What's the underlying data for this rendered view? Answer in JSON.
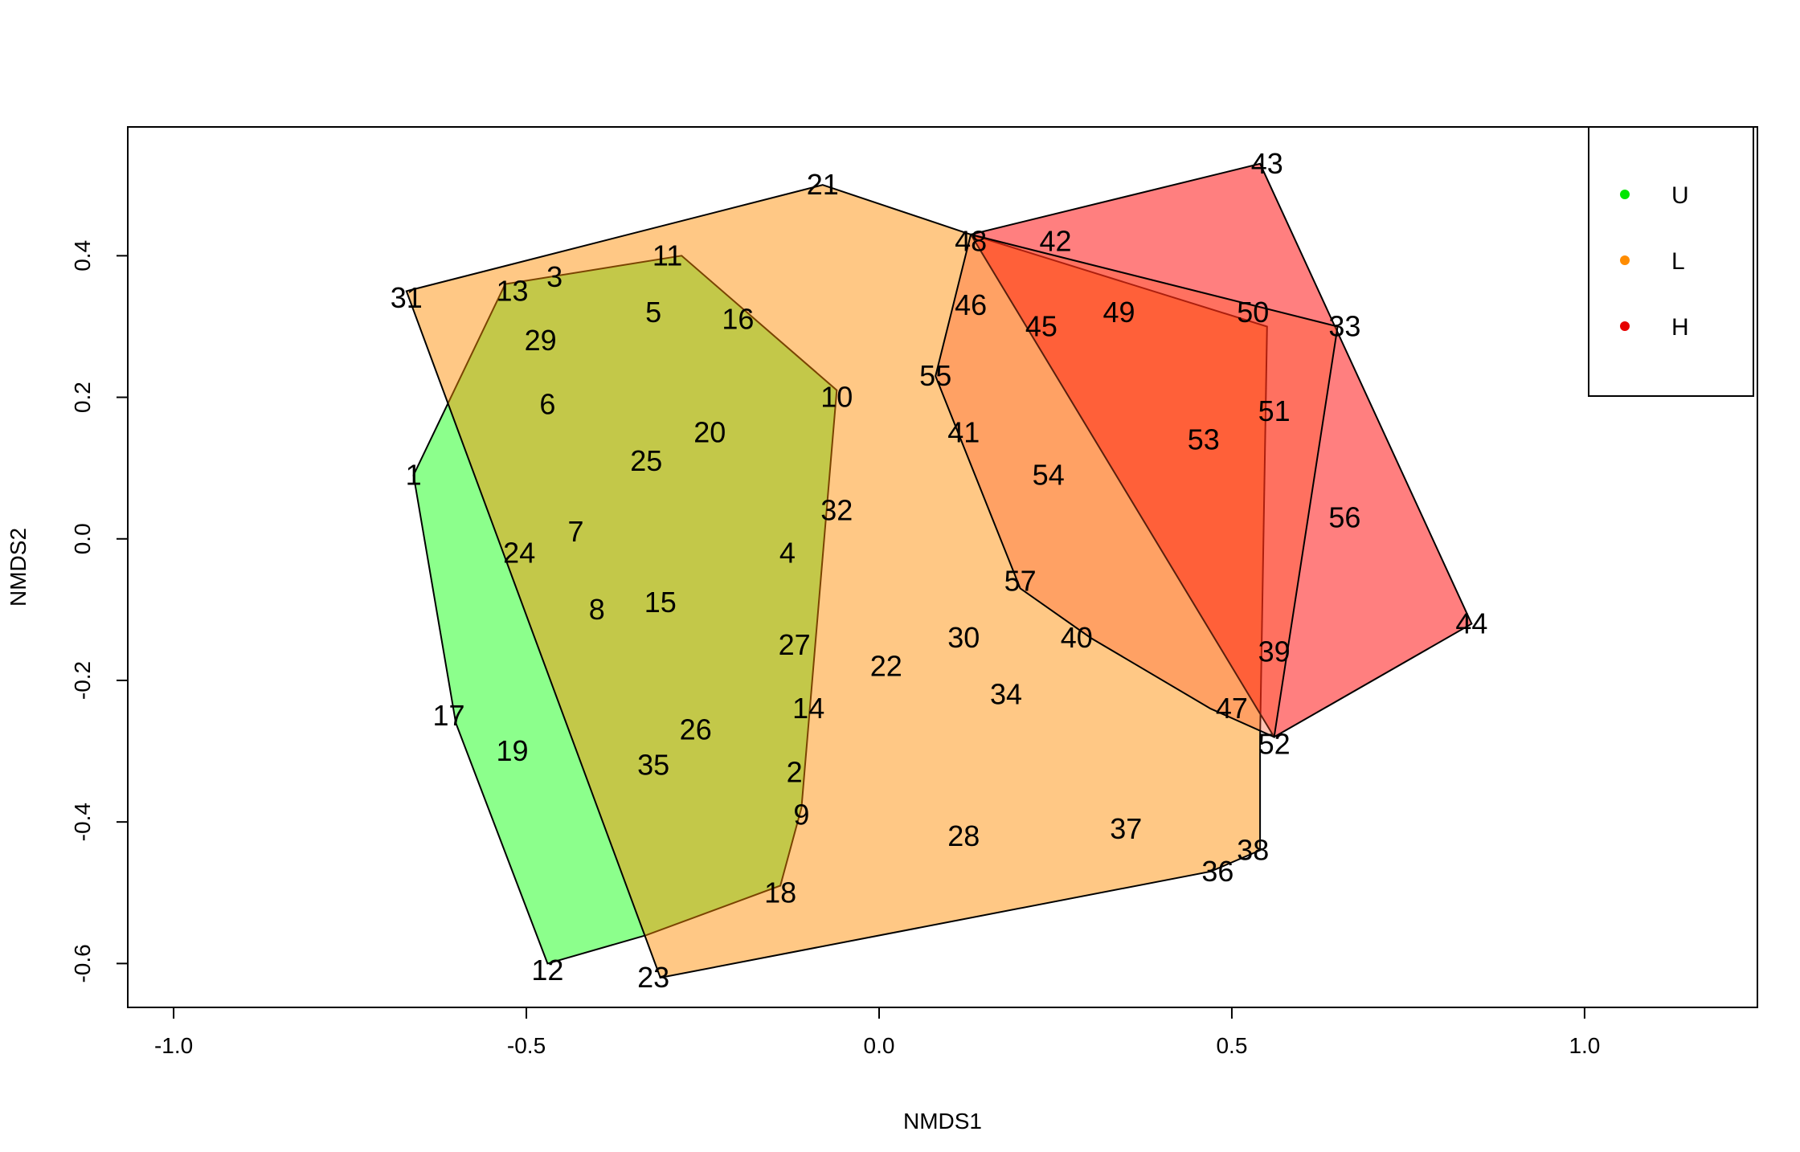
{
  "chart_data": {
    "type": "scatter",
    "title": "",
    "xlabel": "NMDS1",
    "ylabel": "NMDS2",
    "xlim": [
      -1.065,
      1.245
    ],
    "ylim": [
      -0.662,
      0.582
    ],
    "x_ticks": [
      -1.0,
      -0.5,
      0.0,
      0.5,
      1.0
    ],
    "x_tick_labels": [
      "-1.0",
      "-0.5",
      "0.0",
      "0.5",
      "1.0"
    ],
    "y_ticks": [
      -0.6,
      -0.4,
      -0.2,
      0.0,
      0.2,
      0.4
    ],
    "y_tick_labels": [
      "-0.6",
      "-0.4",
      "-0.2",
      "0.0",
      "0.2",
      "0.4"
    ],
    "grid": false,
    "legend_position": "top-right",
    "series": [
      {
        "name": "U",
        "color": "#00e600",
        "fill": "rgba(0,255,0,0.45)",
        "hull": [
          [
            -0.28,
            0.4
          ],
          [
            -0.53,
            0.36
          ],
          [
            -0.66,
            0.09
          ],
          [
            -0.6,
            -0.26
          ],
          [
            -0.47,
            -0.6
          ],
          [
            -0.33,
            -0.56
          ],
          [
            -0.14,
            -0.49
          ],
          [
            -0.11,
            -0.38
          ],
          [
            -0.06,
            0.21
          ]
        ],
        "points": [
          {
            "id": "1",
            "x": -0.66,
            "y": 0.09
          },
          {
            "id": "3",
            "x": -0.46,
            "y": 0.37
          },
          {
            "id": "5",
            "x": -0.32,
            "y": 0.32
          },
          {
            "id": "6",
            "x": -0.47,
            "y": 0.19
          },
          {
            "id": "7",
            "x": -0.43,
            "y": 0.01
          },
          {
            "id": "8",
            "x": -0.4,
            "y": -0.1
          },
          {
            "id": "11",
            "x": -0.3,
            "y": 0.4
          },
          {
            "id": "13",
            "x": -0.52,
            "y": 0.35
          },
          {
            "id": "15",
            "x": -0.31,
            "y": -0.09
          },
          {
            "id": "17",
            "x": -0.61,
            "y": -0.25
          },
          {
            "id": "19",
            "x": -0.52,
            "y": -0.3
          },
          {
            "id": "24",
            "x": -0.51,
            "y": -0.02
          },
          {
            "id": "25",
            "x": -0.33,
            "y": 0.11
          },
          {
            "id": "29",
            "x": -0.48,
            "y": 0.28
          },
          {
            "id": "35",
            "x": -0.32,
            "y": -0.32
          }
        ]
      },
      {
        "name": "L",
        "color": "#ff8c00",
        "fill": "rgba(255,140,0,0.48)",
        "hull": [
          [
            -0.08,
            0.5
          ],
          [
            0.13,
            0.43
          ],
          [
            0.55,
            0.3
          ],
          [
            0.54,
            -0.28
          ],
          [
            0.54,
            -0.44
          ],
          [
            0.47,
            -0.47
          ],
          [
            -0.31,
            -0.62
          ],
          [
            -0.67,
            0.35
          ]
        ],
        "points": [
          {
            "id": "2",
            "x": -0.12,
            "y": -0.33
          },
          {
            "id": "4",
            "x": -0.13,
            "y": -0.02
          },
          {
            "id": "9",
            "x": -0.11,
            "y": -0.39
          },
          {
            "id": "10",
            "x": -0.06,
            "y": 0.2
          },
          {
            "id": "12",
            "x": -0.47,
            "y": -0.61
          },
          {
            "id": "14",
            "x": -0.1,
            "y": -0.24
          },
          {
            "id": "16",
            "x": -0.2,
            "y": 0.31
          },
          {
            "id": "18",
            "x": -0.14,
            "y": -0.5
          },
          {
            "id": "20",
            "x": -0.24,
            "y": 0.15
          },
          {
            "id": "21",
            "x": -0.08,
            "y": 0.5
          },
          {
            "id": "22",
            "x": 0.01,
            "y": -0.18
          },
          {
            "id": "23",
            "x": -0.32,
            "y": -0.62
          },
          {
            "id": "26",
            "x": -0.26,
            "y": -0.27
          },
          {
            "id": "27",
            "x": -0.12,
            "y": -0.15
          },
          {
            "id": "28",
            "x": 0.12,
            "y": -0.42
          },
          {
            "id": "30",
            "x": 0.12,
            "y": -0.14
          },
          {
            "id": "31",
            "x": -0.67,
            "y": 0.34
          },
          {
            "id": "32",
            "x": -0.06,
            "y": 0.04
          },
          {
            "id": "34",
            "x": 0.18,
            "y": -0.22
          },
          {
            "id": "36",
            "x": 0.48,
            "y": -0.47
          },
          {
            "id": "37",
            "x": 0.35,
            "y": -0.41
          },
          {
            "id": "38",
            "x": 0.53,
            "y": -0.44
          }
        ]
      },
      {
        "name": "H",
        "color": "#e60000",
        "fill": "rgba(255,0,0,0.50)",
        "hull": [
          [
            0.54,
            0.53
          ],
          [
            0.84,
            -0.12
          ],
          [
            0.56,
            -0.28
          ],
          [
            0.13,
            0.43
          ]
        ],
        "inner_hull": [
          [
            0.13,
            0.43
          ],
          [
            0.65,
            0.3
          ],
          [
            0.56,
            -0.28
          ],
          [
            0.47,
            -0.24
          ],
          [
            0.3,
            -0.14
          ],
          [
            0.2,
            -0.07
          ],
          [
            0.08,
            0.23
          ]
        ],
        "points": [
          {
            "id": "33",
            "x": 0.66,
            "y": 0.3
          },
          {
            "id": "39",
            "x": 0.56,
            "y": -0.16
          },
          {
            "id": "40",
            "x": 0.28,
            "y": -0.14
          },
          {
            "id": "41",
            "x": 0.12,
            "y": 0.15
          },
          {
            "id": "42",
            "x": 0.25,
            "y": 0.42
          },
          {
            "id": "43",
            "x": 0.55,
            "y": 0.53
          },
          {
            "id": "44",
            "x": 0.84,
            "y": -0.12
          },
          {
            "id": "45",
            "x": 0.23,
            "y": 0.3
          },
          {
            "id": "46",
            "x": 0.13,
            "y": 0.33
          },
          {
            "id": "47",
            "x": 0.5,
            "y": -0.24
          },
          {
            "id": "48",
            "x": 0.13,
            "y": 0.42
          },
          {
            "id": "49",
            "x": 0.34,
            "y": 0.32
          },
          {
            "id": "50",
            "x": 0.53,
            "y": 0.32
          },
          {
            "id": "51",
            "x": 0.56,
            "y": 0.18
          },
          {
            "id": "52",
            "x": 0.56,
            "y": -0.29
          },
          {
            "id": "53",
            "x": 0.46,
            "y": 0.14
          },
          {
            "id": "54",
            "x": 0.24,
            "y": 0.09
          },
          {
            "id": "55",
            "x": 0.08,
            "y": 0.23
          },
          {
            "id": "56",
            "x": 0.66,
            "y": 0.03
          },
          {
            "id": "57",
            "x": 0.2,
            "y": -0.06
          }
        ]
      }
    ],
    "legend": [
      {
        "label": "U",
        "color": "#00e600"
      },
      {
        "label": "L",
        "color": "#ff8c00"
      },
      {
        "label": "H",
        "color": "#e60000"
      }
    ]
  }
}
